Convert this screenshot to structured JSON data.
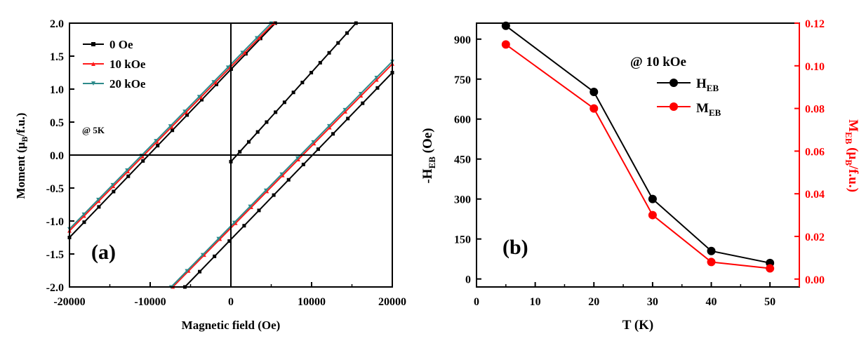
{
  "chart_data": [
    {
      "panel_label": "(a)",
      "type": "line",
      "xlabel": "Magnetic field (Oe)",
      "ylabel": {
        "main": "Moment (",
        "mu": "μ",
        "sub": "B",
        "tail": "/f.u.)"
      },
      "xlim": [
        -20000,
        20000
      ],
      "ylim": [
        -2.0,
        2.0
      ],
      "xticks": [
        -20000,
        -10000,
        0,
        10000,
        20000
      ],
      "xtick_labels": [
        "-20000",
        "-10000",
        "0",
        "10000",
        "20000"
      ],
      "yticks": [
        -2.0,
        -1.5,
        -1.0,
        -0.5,
        0.0,
        0.5,
        1.0,
        1.5,
        2.0
      ],
      "ytick_labels": [
        "-2.0",
        "-1.5",
        "-1.0",
        "-0.5",
        "0.0",
        "0.5",
        "1.0",
        "1.5",
        "2.0"
      ],
      "annotation": "@ 5K",
      "series": [
        {
          "name": "0 Oe",
          "color": "#000000",
          "marker": "square",
          "branches": [
            {
              "x": [
                -20000,
                5500
              ],
              "y": [
                -1.25,
                2.0
              ]
            },
            {
              "x": [
                -5700,
                20000
              ],
              "y": [
                -2.0,
                1.25
              ]
            },
            {
              "x": [
                0,
                15500
              ],
              "y": [
                -0.1,
                2.0
              ]
            }
          ]
        },
        {
          "name": "10 kOe",
          "color": "#ff1a1a",
          "marker": "triangle",
          "branches": [
            {
              "x": [
                -20000,
                5300
              ],
              "y": [
                -1.15,
                2.0
              ]
            },
            {
              "x": [
                -7200,
                20000
              ],
              "y": [
                -2.0,
                1.38
              ]
            }
          ]
        },
        {
          "name": "20 kOe",
          "color": "#2e8b8b",
          "marker": "triangle-down",
          "branches": [
            {
              "x": [
                -20000,
                5000
              ],
              "y": [
                -1.12,
                2.0
              ]
            },
            {
              "x": [
                -7400,
                20000
              ],
              "y": [
                -2.0,
                1.42
              ]
            }
          ]
        }
      ]
    },
    {
      "panel_label": "(b)",
      "type": "line",
      "xlabel": "T (K)",
      "ylabel_left": {
        "pre": "-H",
        "sub": "EB",
        "post": " (Oe)"
      },
      "ylabel_right": {
        "pre": "M",
        "sub": "EB",
        "mid": " (",
        "mu": "μ",
        "sub2": "B",
        "tail": "/f.u.)"
      },
      "xlim": [
        0,
        55
      ],
      "ylim_left": [
        -30,
        960
      ],
      "ylim_right": [
        -0.0037,
        0.12
      ],
      "xticks": [
        0,
        10,
        20,
        30,
        40,
        50
      ],
      "xtick_labels": [
        "0",
        "10",
        "20",
        "30",
        "40",
        "50"
      ],
      "yticks_left": [
        0,
        150,
        300,
        450,
        600,
        750,
        900
      ],
      "ytick_labels_left": [
        "0",
        "150",
        "300",
        "450",
        "600",
        "750",
        "900"
      ],
      "yticks_right": [
        0.0,
        0.02,
        0.04,
        0.06,
        0.08,
        0.1,
        0.12
      ],
      "ytick_labels_right": [
        "0.00",
        "0.02",
        "0.04",
        "0.06",
        "0.08",
        "0.10",
        "0.12"
      ],
      "annotation": "@ 10 kOe",
      "x": [
        5,
        20,
        30,
        40,
        50
      ],
      "series": [
        {
          "name": "H",
          "name_sub": "EB",
          "axis": "left",
          "color": "#000000",
          "values": [
            950,
            702,
            300,
            105,
            60
          ]
        },
        {
          "name": "M",
          "name_sub": "EB",
          "axis": "right",
          "color": "#ff0000",
          "values": [
            0.11,
            0.08,
            0.03,
            0.008,
            0.005
          ]
        }
      ]
    }
  ]
}
